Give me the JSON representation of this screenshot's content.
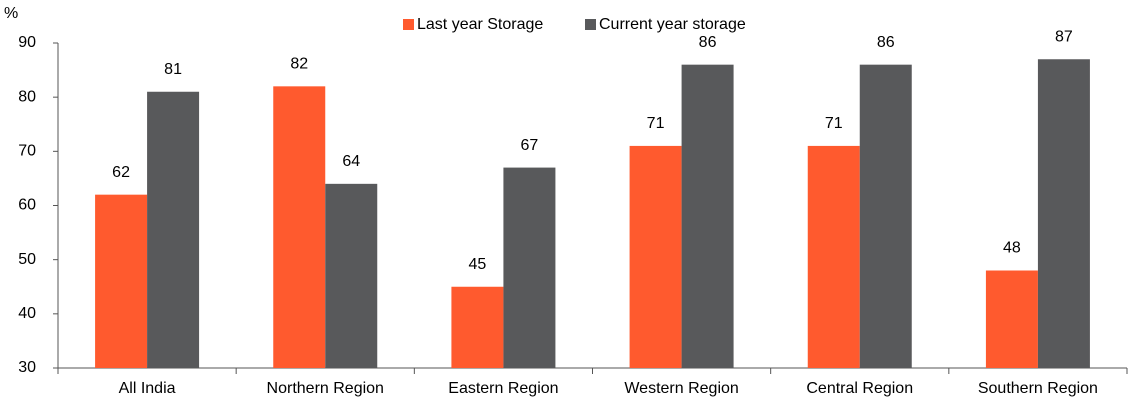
{
  "chart_data": {
    "type": "bar",
    "y_label": "%",
    "categories": [
      "All India",
      "Northern Region",
      "Eastern Region",
      "Western Region",
      "Central Region",
      "Southern Region"
    ],
    "series": [
      {
        "name": "Last year Storage",
        "color": "#ff5a2e",
        "values": [
          62,
          82,
          45,
          71,
          71,
          48
        ]
      },
      {
        "name": "Current year storage",
        "color": "#58595b",
        "values": [
          81,
          64,
          67,
          86,
          86,
          87
        ]
      }
    ],
    "ylim": [
      30,
      90
    ],
    "yticks": [
      30,
      40,
      50,
      60,
      70,
      80,
      90
    ],
    "grid": false,
    "legend": "top"
  }
}
